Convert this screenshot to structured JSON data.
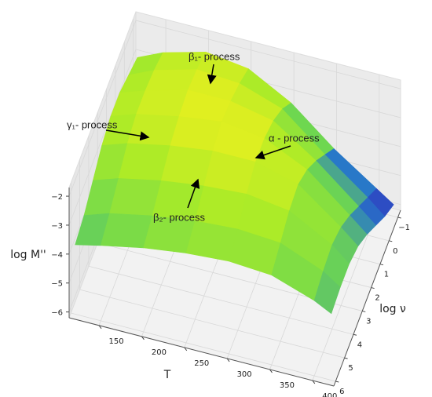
{
  "chart_data": {
    "type": "surface3d",
    "x_label": "T",
    "y_label": "log ν",
    "z_label": "log M''",
    "x": [
      120,
      150,
      200,
      250,
      300,
      350,
      400,
      420
    ],
    "y": [
      -1,
      0,
      1,
      2,
      3,
      4,
      5,
      6
    ],
    "z": [
      [
        -3.0,
        -2.8,
        -2.6,
        -2.6,
        -2.8,
        -3.2,
        -3.6,
        -3.8
      ],
      [
        -2.6,
        -2.4,
        -2.3,
        -2.3,
        -2.5,
        -2.9,
        -3.3,
        -3.6
      ],
      [
        -2.2,
        -2.0,
        -1.9,
        -2.0,
        -2.2,
        -2.6,
        -3.0,
        -3.3
      ],
      [
        -2.4,
        -2.1,
        -1.9,
        -1.8,
        -2.0,
        -2.4,
        -2.8,
        -3.1
      ],
      [
        -3.2,
        -2.6,
        -2.2,
        -2.0,
        -2.0,
        -2.3,
        -2.7,
        -3.0
      ],
      [
        -4.4,
        -3.8,
        -3.2,
        -2.7,
        -2.4,
        -2.5,
        -2.8,
        -3.1
      ],
      [
        -5.4,
        -4.9,
        -4.4,
        -3.9,
        -3.5,
        -3.3,
        -3.4,
        -3.6
      ],
      [
        -5.8,
        -5.4,
        -4.9,
        -4.4,
        -4.0,
        -3.8,
        -3.8,
        -3.9
      ]
    ],
    "xlim": [
      115,
      425
    ],
    "xticks": [
      150,
      200,
      250,
      300,
      350,
      400
    ],
    "ylim": [
      -1.3,
      6.2
    ],
    "yticks": [
      {
        "value": -1,
        "label": "−1"
      },
      0,
      1,
      2,
      3,
      4,
      5,
      6
    ],
    "zlim": [
      -6.2,
      -1.7
    ],
    "zticks": [
      {
        "value": -6,
        "label": "−6"
      },
      {
        "value": -5,
        "label": "−5"
      },
      {
        "value": -4,
        "label": "−4"
      },
      {
        "value": -3,
        "label": "−3"
      },
      {
        "value": -2,
        "label": "−2"
      }
    ],
    "grid": true,
    "annotations": [
      "γ₁- process",
      "β₁- process",
      "α - process",
      "β₂- process"
    ]
  }
}
